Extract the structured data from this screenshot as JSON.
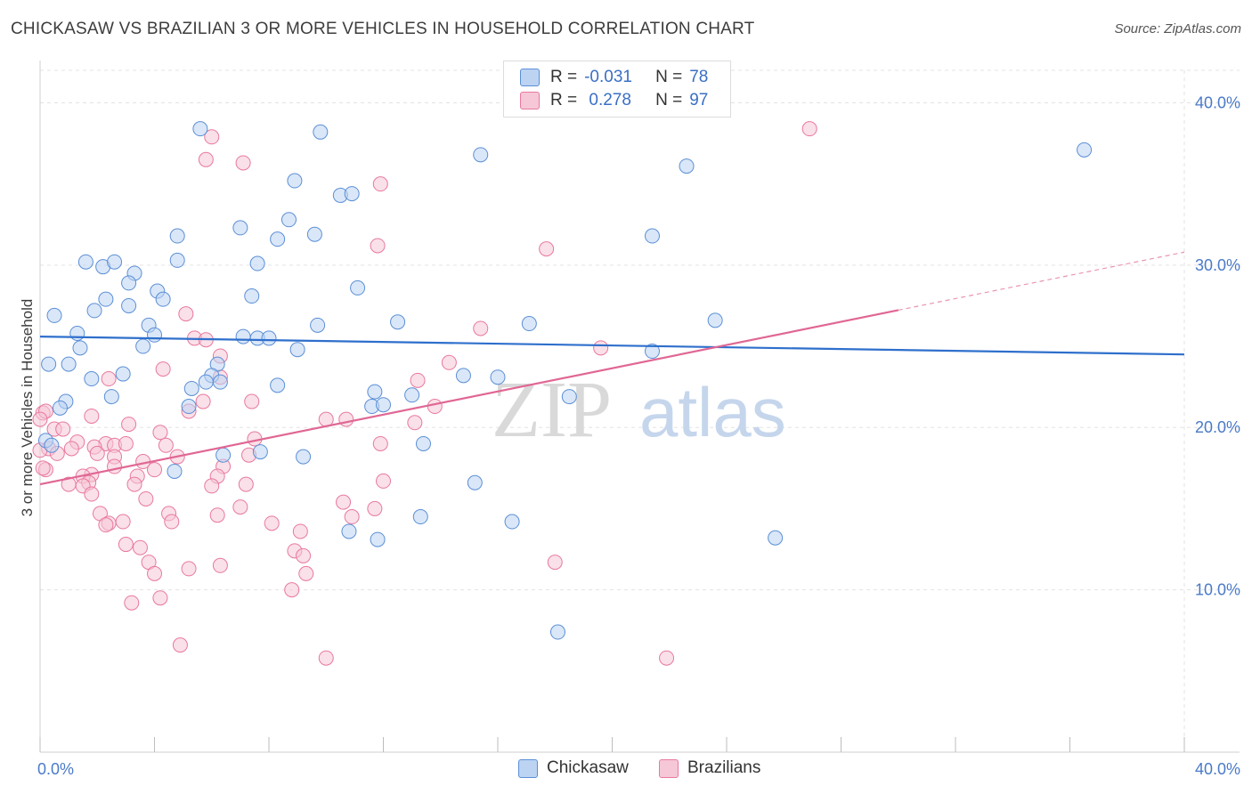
{
  "title": "CHICKASAW VS BRAZILIAN 3 OR MORE VEHICLES IN HOUSEHOLD CORRELATION CHART",
  "source": "Source: ZipAtlas.com",
  "legend": {
    "rows": [
      {
        "r_label": "R =",
        "r_value": "-0.031",
        "n_label": "N =",
        "n_value": "78"
      },
      {
        "r_label": "R =",
        "r_value": " 0.278",
        "n_label": "N =",
        "n_value": "97"
      }
    ]
  },
  "bottom_legend": [
    "Chickasaw",
    "Brazilians"
  ],
  "watermark": {
    "zip": "ZIP",
    "atlas": "atlas"
  },
  "colors": {
    "chickasaw": "#5b8fd6",
    "chickasaw_fill": "#bcd3f2",
    "brazilians": "#e8799e",
    "brazilians_fill": "#f6c7d6",
    "trend_blue": "#2e6fcc",
    "trend_pink": "#e06794",
    "tick_text": "#4a7ac8",
    "grid": "#e3e3e3"
  },
  "chart_data": {
    "type": "scatter",
    "title": "CHICKASAW VS BRAZILIAN 3 OR MORE VEHICLES IN HOUSEHOLD CORRELATION CHART",
    "xlabel": "",
    "ylabel": "3 or more Vehicles in Household",
    "xlim": [
      0,
      40
    ],
    "ylim": [
      0,
      42
    ],
    "x_tick_labels": [
      "0.0%",
      "40.0%"
    ],
    "y_ticks": [
      10,
      20,
      30,
      40
    ],
    "y_tick_labels": [
      "10.0%",
      "20.0%",
      "30.0%",
      "40.0%"
    ],
    "grid": true,
    "legend_position": "top-center",
    "series": [
      {
        "name": "Chickasaw",
        "r": -0.031,
        "n": 78,
        "trend": {
          "x": [
            0,
            40
          ],
          "y": [
            25.6,
            24.5
          ]
        },
        "points": [
          [
            5.6,
            38.4
          ],
          [
            9.8,
            38.2
          ],
          [
            15.4,
            36.8
          ],
          [
            22.6,
            36.1
          ],
          [
            36.5,
            37.1
          ],
          [
            8.9,
            35.2
          ],
          [
            10.5,
            34.3
          ],
          [
            10.9,
            34.4
          ],
          [
            8.7,
            32.8
          ],
          [
            7.0,
            32.3
          ],
          [
            4.8,
            31.8
          ],
          [
            8.3,
            31.6
          ],
          [
            9.6,
            31.9
          ],
          [
            21.4,
            31.8
          ],
          [
            1.6,
            30.2
          ],
          [
            2.2,
            29.9
          ],
          [
            2.6,
            30.2
          ],
          [
            4.8,
            30.3
          ],
          [
            7.6,
            30.1
          ],
          [
            3.3,
            29.5
          ],
          [
            3.1,
            28.9
          ],
          [
            4.1,
            28.4
          ],
          [
            11.1,
            28.6
          ],
          [
            7.4,
            28.1
          ],
          [
            2.3,
            27.9
          ],
          [
            3.1,
            27.5
          ],
          [
            4.3,
            27.9
          ],
          [
            1.9,
            27.2
          ],
          [
            0.5,
            26.9
          ],
          [
            3.8,
            26.3
          ],
          [
            9.7,
            26.3
          ],
          [
            12.5,
            26.5
          ],
          [
            17.1,
            26.4
          ],
          [
            23.6,
            26.6
          ],
          [
            1.3,
            25.8
          ],
          [
            4.0,
            25.7
          ],
          [
            7.1,
            25.6
          ],
          [
            7.6,
            25.5
          ],
          [
            8.0,
            25.5
          ],
          [
            3.6,
            25.0
          ],
          [
            1.4,
            24.9
          ],
          [
            9.0,
            24.8
          ],
          [
            21.4,
            24.7
          ],
          [
            0.3,
            23.9
          ],
          [
            1.0,
            23.9
          ],
          [
            6.2,
            23.9
          ],
          [
            2.9,
            23.3
          ],
          [
            1.8,
            23.0
          ],
          [
            6.0,
            23.2
          ],
          [
            14.8,
            23.2
          ],
          [
            16.0,
            23.1
          ],
          [
            5.8,
            22.8
          ],
          [
            6.3,
            22.8
          ],
          [
            8.3,
            22.6
          ],
          [
            5.3,
            22.4
          ],
          [
            11.7,
            22.2
          ],
          [
            13.0,
            22.0
          ],
          [
            18.5,
            21.9
          ],
          [
            2.5,
            21.9
          ],
          [
            0.9,
            21.6
          ],
          [
            0.7,
            21.2
          ],
          [
            5.2,
            21.3
          ],
          [
            11.6,
            21.3
          ],
          [
            12.0,
            21.4
          ],
          [
            13.4,
            19.0
          ],
          [
            7.7,
            18.5
          ],
          [
            9.2,
            18.2
          ],
          [
            6.4,
            18.3
          ],
          [
            0.2,
            19.2
          ],
          [
            0.4,
            18.9
          ],
          [
            4.7,
            17.3
          ],
          [
            15.2,
            16.6
          ],
          [
            13.3,
            14.5
          ],
          [
            16.5,
            14.2
          ],
          [
            10.8,
            13.6
          ],
          [
            11.8,
            13.1
          ],
          [
            25.7,
            13.2
          ],
          [
            18.1,
            7.4
          ]
        ]
      },
      {
        "name": "Brazilians",
        "r": 0.278,
        "n": 97,
        "trend": {
          "x": [
            0,
            40
          ],
          "y": [
            16.5,
            30.8
          ]
        },
        "points": [
          [
            26.9,
            38.4
          ],
          [
            6.0,
            37.9
          ],
          [
            5.8,
            36.5
          ],
          [
            7.1,
            36.3
          ],
          [
            11.9,
            35.0
          ],
          [
            11.8,
            31.2
          ],
          [
            17.7,
            31.0
          ],
          [
            5.1,
            27.0
          ],
          [
            15.4,
            26.1
          ],
          [
            5.4,
            25.5
          ],
          [
            5.8,
            25.4
          ],
          [
            19.6,
            24.9
          ],
          [
            6.3,
            24.4
          ],
          [
            4.3,
            23.6
          ],
          [
            2.4,
            23.0
          ],
          [
            6.3,
            23.1
          ],
          [
            13.2,
            22.9
          ],
          [
            5.7,
            21.6
          ],
          [
            7.4,
            21.6
          ],
          [
            13.8,
            21.3
          ],
          [
            5.2,
            21.0
          ],
          [
            1.8,
            20.7
          ],
          [
            0.1,
            20.9
          ],
          [
            0.2,
            21.0
          ],
          [
            10.0,
            20.5
          ],
          [
            10.7,
            20.5
          ],
          [
            13.1,
            20.3
          ],
          [
            3.1,
            20.2
          ],
          [
            0.5,
            19.9
          ],
          [
            0.8,
            19.9
          ],
          [
            4.2,
            19.7
          ],
          [
            7.5,
            19.3
          ],
          [
            1.3,
            19.1
          ],
          [
            2.3,
            19.0
          ],
          [
            1.1,
            18.7
          ],
          [
            0.3,
            18.7
          ],
          [
            4.4,
            18.9
          ],
          [
            11.9,
            19.0
          ],
          [
            1.9,
            18.8
          ],
          [
            2.0,
            18.4
          ],
          [
            2.6,
            18.9
          ],
          [
            3.0,
            19.0
          ],
          [
            0.6,
            18.4
          ],
          [
            4.8,
            18.2
          ],
          [
            7.3,
            18.3
          ],
          [
            2.6,
            18.2
          ],
          [
            3.6,
            17.9
          ],
          [
            6.4,
            17.6
          ],
          [
            2.6,
            17.6
          ],
          [
            0.2,
            17.4
          ],
          [
            4.0,
            17.4
          ],
          [
            1.8,
            17.1
          ],
          [
            1.5,
            17.0
          ],
          [
            3.4,
            17.0
          ],
          [
            6.2,
            17.0
          ],
          [
            1.7,
            16.6
          ],
          [
            1.5,
            16.4
          ],
          [
            3.3,
            16.5
          ],
          [
            6.0,
            16.4
          ],
          [
            7.2,
            16.5
          ],
          [
            12.0,
            16.7
          ],
          [
            1.0,
            16.5
          ],
          [
            1.8,
            15.9
          ],
          [
            3.7,
            15.6
          ],
          [
            10.6,
            15.4
          ],
          [
            7.0,
            15.1
          ],
          [
            11.7,
            15.0
          ],
          [
            2.1,
            14.7
          ],
          [
            4.5,
            14.7
          ],
          [
            6.2,
            14.6
          ],
          [
            10.9,
            14.5
          ],
          [
            2.4,
            14.1
          ],
          [
            2.3,
            14.0
          ],
          [
            2.9,
            14.2
          ],
          [
            4.6,
            14.2
          ],
          [
            8.1,
            14.1
          ],
          [
            9.1,
            13.6
          ],
          [
            3.0,
            12.8
          ],
          [
            3.5,
            12.6
          ],
          [
            8.9,
            12.4
          ],
          [
            9.2,
            12.1
          ],
          [
            3.8,
            11.7
          ],
          [
            5.2,
            11.3
          ],
          [
            6.3,
            11.5
          ],
          [
            18.0,
            11.7
          ],
          [
            4.0,
            11.0
          ],
          [
            9.3,
            11.0
          ],
          [
            8.8,
            10.0
          ],
          [
            4.2,
            9.5
          ],
          [
            3.2,
            9.2
          ],
          [
            4.9,
            6.6
          ],
          [
            10.0,
            5.8
          ],
          [
            21.9,
            5.8
          ],
          [
            0.1,
            17.5
          ],
          [
            0.0,
            18.6
          ],
          [
            0.0,
            20.5
          ],
          [
            14.3,
            24.0
          ]
        ]
      }
    ]
  }
}
